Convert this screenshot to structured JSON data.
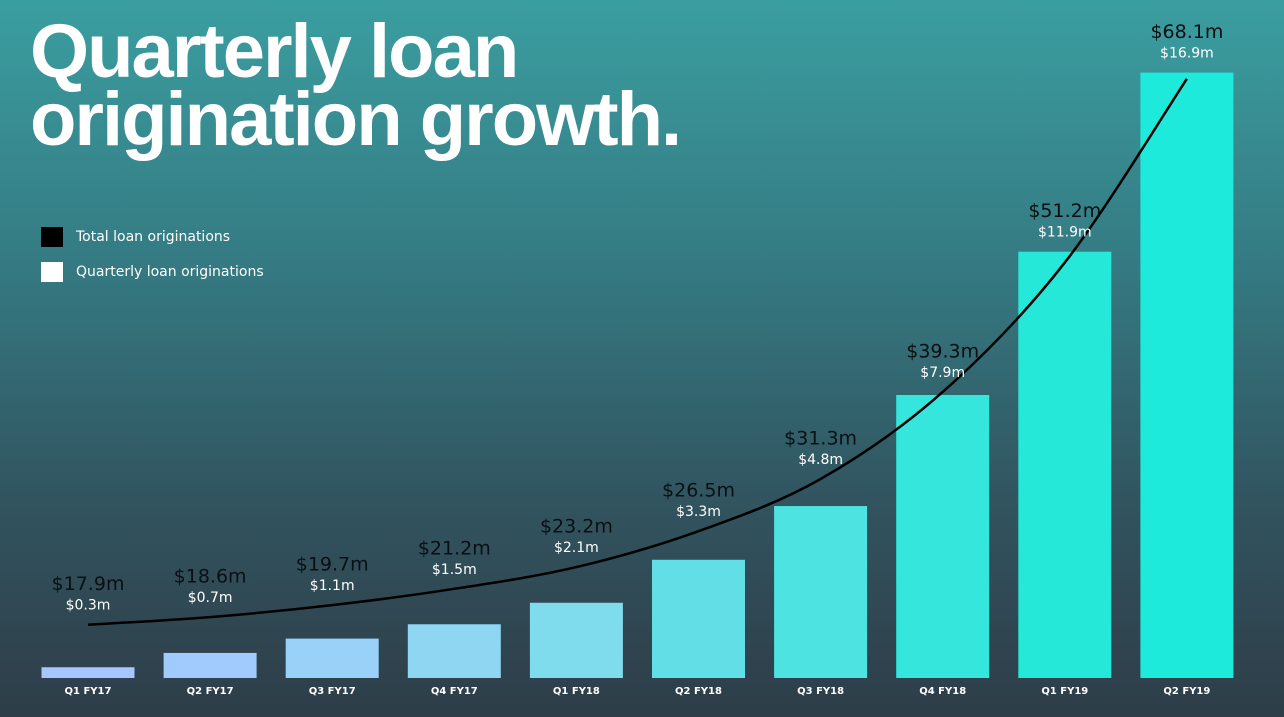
{
  "chart_data": {
    "type": "bar-line",
    "title": "Quarterly loan origination growth.",
    "categories": [
      "Q1 FY17",
      "Q2 FY17",
      "Q3 FY17",
      "Q4 FY17",
      "Q1 FY18",
      "Q2 FY18",
      "Q3 FY18",
      "Q4 FY18",
      "Q1 FY19",
      "Q2 FY19"
    ],
    "series": [
      {
        "name": "Total loan originations",
        "color": "#000000",
        "type": "line",
        "axis": "y2",
        "values": [
          17.9,
          18.6,
          19.7,
          21.2,
          23.2,
          26.5,
          31.3,
          39.3,
          51.2,
          68.1
        ],
        "value_labels": [
          "$17.9m",
          "$18.6m",
          "$19.7m",
          "$21.2m",
          "$23.2m",
          "$26.5m",
          "$31.3m",
          "$39.3m",
          "$51.2m",
          "$68.1m"
        ]
      },
      {
        "name": "Quarterly loan originations",
        "color": "#ffffff",
        "type": "bar",
        "bar_colors": [
          "#a7c6ff",
          "#a1cbfd",
          "#99d1f8",
          "#8fd6f2",
          "#7fdcec",
          "#62dfe6",
          "#4ce3e0",
          "#34e6db",
          "#25e8d8",
          "#1deada"
        ],
        "values": [
          0.3,
          0.7,
          1.1,
          1.5,
          2.1,
          3.3,
          4.8,
          7.9,
          11.9,
          16.9
        ],
        "value_labels": [
          "$0.3m",
          "$0.7m",
          "$1.1m",
          "$1.5m",
          "$2.1m",
          "$3.3m",
          "$4.8m",
          "$7.9m",
          "$11.9m",
          "$16.9m"
        ]
      }
    ],
    "ylim": [
      0,
      17
    ],
    "y2lim": [
      13,
      69
    ],
    "legend": "upper left"
  }
}
